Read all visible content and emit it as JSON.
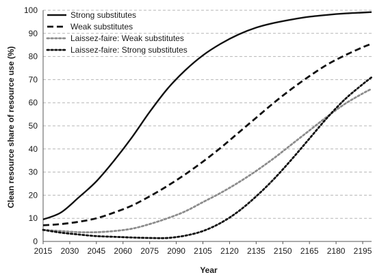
{
  "chart_data": {
    "type": "line",
    "xlabel": "Year",
    "ylabel": "Clean resource share of resource use (%)",
    "xlim": [
      2015,
      2200
    ],
    "ylim": [
      0,
      100
    ],
    "xticks": [
      2015,
      2030,
      2045,
      2060,
      2075,
      2090,
      2105,
      2120,
      2135,
      2150,
      2165,
      2180,
      2195
    ],
    "yticks": [
      0,
      10,
      20,
      30,
      40,
      50,
      60,
      70,
      80,
      90,
      100
    ],
    "grid": "horizontal-dashed",
    "legend_position": "top-left",
    "x": [
      2015,
      2025,
      2035,
      2045,
      2055,
      2065,
      2075,
      2085,
      2095,
      2105,
      2115,
      2125,
      2135,
      2145,
      2155,
      2165,
      2175,
      2185,
      2195,
      2200
    ],
    "series": [
      {
        "name": "Strong substitutes",
        "style": "solid",
        "color": "#111111",
        "values": [
          9.5,
          12.5,
          19,
          26,
          35,
          45,
          56,
          66,
          74,
          80.5,
          85.5,
          89.5,
          92.5,
          94.5,
          96,
          97.2,
          98,
          98.6,
          99,
          99.2
        ]
      },
      {
        "name": "Weak substitutes",
        "style": "dashed",
        "color": "#111111",
        "values": [
          7,
          7.5,
          8.5,
          10,
          12.5,
          15.5,
          19.5,
          24,
          29,
          34.5,
          40.5,
          47,
          53.5,
          60,
          66,
          71.5,
          76.5,
          80.5,
          84,
          85.5
        ]
      },
      {
        "name": "Laissez-faire: Weak substitutes",
        "style": "dotted",
        "color": "#8c8c8c",
        "values": [
          5,
          4.5,
          4,
          4,
          4.5,
          5.5,
          7.5,
          10,
          13,
          17,
          21,
          25.5,
          30.5,
          36,
          42,
          48,
          54,
          59.5,
          64,
          66
        ]
      },
      {
        "name": "Laissez-faire: Strong substitutes",
        "style": "dotted",
        "color": "#111111",
        "values": [
          5,
          3.8,
          3,
          2.3,
          2,
          1.7,
          1.5,
          1.5,
          2.5,
          4.5,
          8,
          13,
          19.5,
          27,
          35.5,
          44.5,
          53.5,
          61.5,
          68,
          71
        ]
      }
    ]
  }
}
